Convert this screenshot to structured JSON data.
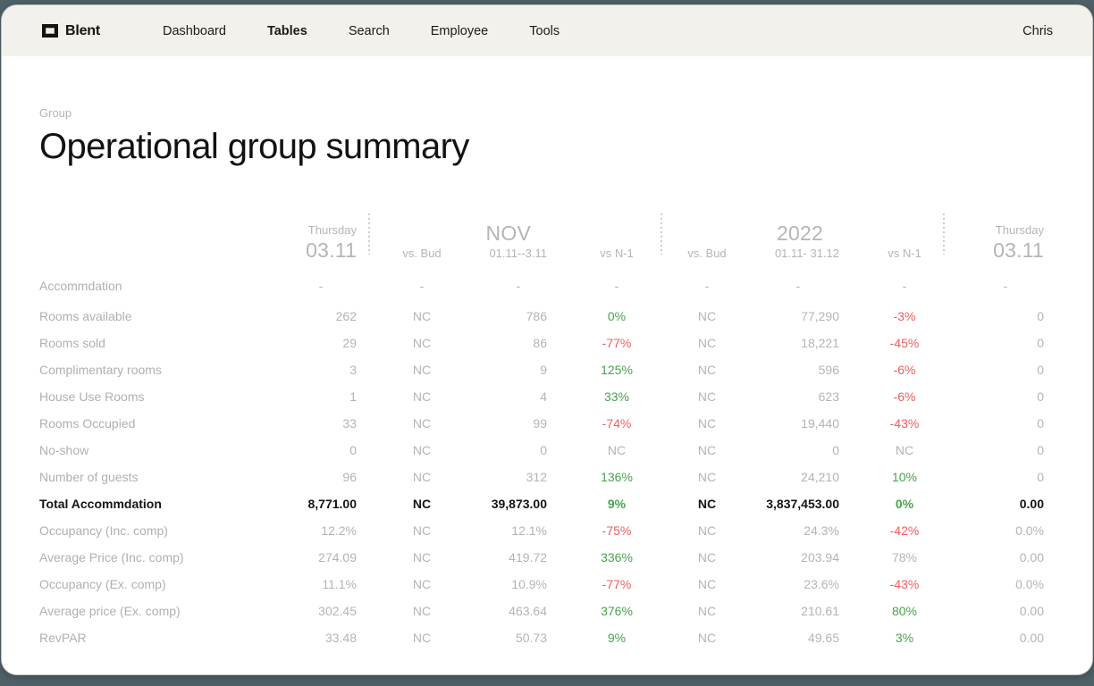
{
  "nav": {
    "brand": "Blent",
    "items": [
      {
        "label": "Dashboard",
        "active": false
      },
      {
        "label": "Tables",
        "active": true
      },
      {
        "label": "Search",
        "active": false
      },
      {
        "label": "Employee",
        "active": false
      },
      {
        "label": "Tools",
        "active": false
      }
    ],
    "user": "Chris"
  },
  "page": {
    "eyebrow": "Group",
    "title": "Operational group summary"
  },
  "colors": {
    "positive": "#47a44b",
    "negative": "#f15d5d",
    "muted_text": "#b6b4b1",
    "ink": "#141414",
    "navbar_bg": "#f2f1ec",
    "frame_bg": "#4e6167"
  },
  "table": {
    "header": {
      "col1_line1": "Thursday",
      "col1_line2": "03.11",
      "col2": "vs. Bud",
      "col3_line1": "NOV",
      "col3_line2": "01.11--3.11",
      "col4": "vs N-1",
      "col5": "vs. Bud",
      "col6_line1": "2022",
      "col6_line2": "01.11- 31.12",
      "col7": "vs N-1",
      "col8_line1": "Thursday",
      "col8_line2": "03.11"
    },
    "rows": [
      {
        "label": "Accommdation",
        "bold": false,
        "values": [
          "-",
          "-",
          "-",
          "-",
          "-",
          "-",
          "-",
          "-"
        ],
        "tones": [
          "m",
          "m",
          "m",
          "m",
          "m",
          "m",
          "m",
          "m"
        ]
      },
      {
        "label": "Rooms available",
        "bold": false,
        "values": [
          "262",
          "NC",
          "786",
          "0%",
          "NC",
          "77,290",
          "-3%",
          "0"
        ],
        "tones": [
          "m",
          "m",
          "m",
          "g",
          "m",
          "m",
          "r",
          "m"
        ]
      },
      {
        "label": "Rooms sold",
        "bold": false,
        "values": [
          "29",
          "NC",
          "86",
          "-77%",
          "NC",
          "18,221",
          "-45%",
          "0"
        ],
        "tones": [
          "m",
          "m",
          "m",
          "r",
          "m",
          "m",
          "r",
          "m"
        ]
      },
      {
        "label": "Complimentary rooms",
        "bold": false,
        "values": [
          "3",
          "NC",
          "9",
          "125%",
          "NC",
          "596",
          "-6%",
          "0"
        ],
        "tones": [
          "m",
          "m",
          "m",
          "g",
          "m",
          "m",
          "r",
          "m"
        ]
      },
      {
        "label": "House Use Rooms",
        "bold": false,
        "values": [
          "1",
          "NC",
          "4",
          "33%",
          "NC",
          "623",
          "-6%",
          "0"
        ],
        "tones": [
          "m",
          "m",
          "m",
          "g",
          "m",
          "m",
          "r",
          "m"
        ]
      },
      {
        "label": "Rooms Occupied",
        "bold": false,
        "values": [
          "33",
          "NC",
          "99",
          "-74%",
          "NC",
          "19,440",
          "-43%",
          "0"
        ],
        "tones": [
          "m",
          "m",
          "m",
          "r",
          "m",
          "m",
          "r",
          "m"
        ]
      },
      {
        "label": "No-show",
        "bold": false,
        "values": [
          "0",
          "NC",
          "0",
          "NC",
          "NC",
          "0",
          "NC",
          "0"
        ],
        "tones": [
          "m",
          "m",
          "m",
          "m",
          "m",
          "m",
          "m",
          "m"
        ]
      },
      {
        "label": "Number of guests",
        "bold": false,
        "values": [
          "96",
          "NC",
          "312",
          "136%",
          "NC",
          "24,210",
          "10%",
          "0"
        ],
        "tones": [
          "m",
          "m",
          "m",
          "g",
          "m",
          "m",
          "g",
          "m"
        ]
      },
      {
        "label": "Total Accommdation",
        "bold": true,
        "values": [
          "8,771.00",
          "NC",
          "39,873.00",
          "9%",
          "NC",
          "3,837,453.00",
          "0%",
          "0.00"
        ],
        "tones": [
          "k",
          "k",
          "k",
          "g",
          "k",
          "k",
          "g",
          "k"
        ]
      },
      {
        "label": "Occupancy (Inc. comp)",
        "bold": false,
        "values": [
          "12.2%",
          "NC",
          "12.1%",
          "-75%",
          "NC",
          "24.3%",
          "-42%",
          "0.0%"
        ],
        "tones": [
          "m",
          "m",
          "m",
          "r",
          "m",
          "m",
          "r",
          "m"
        ]
      },
      {
        "label": "Average Price (Inc. comp)",
        "bold": false,
        "values": [
          "274.09",
          "NC",
          "419.72",
          "336%",
          "NC",
          "203.94",
          "78%",
          "0.00"
        ],
        "tones": [
          "m",
          "m",
          "m",
          "g",
          "m",
          "m",
          "m",
          "m"
        ]
      },
      {
        "label": "Occupancy (Ex. comp)",
        "bold": false,
        "values": [
          "11.1%",
          "NC",
          "10.9%",
          "-77%",
          "NC",
          "23.6%",
          "-43%",
          "0.0%"
        ],
        "tones": [
          "m",
          "m",
          "m",
          "r",
          "m",
          "m",
          "r",
          "m"
        ]
      },
      {
        "label": "Average price (Ex. comp)",
        "bold": false,
        "values": [
          "302.45",
          "NC",
          "463.64",
          "376%",
          "NC",
          "210.61",
          "80%",
          "0.00"
        ],
        "tones": [
          "m",
          "m",
          "m",
          "g",
          "m",
          "m",
          "g",
          "m"
        ]
      },
      {
        "label": "RevPAR",
        "bold": false,
        "values": [
          "33.48",
          "NC",
          "50.73",
          "9%",
          "NC",
          "49.65",
          "3%",
          "0.00"
        ],
        "tones": [
          "m",
          "m",
          "m",
          "g",
          "m",
          "m",
          "g",
          "m"
        ]
      }
    ]
  }
}
